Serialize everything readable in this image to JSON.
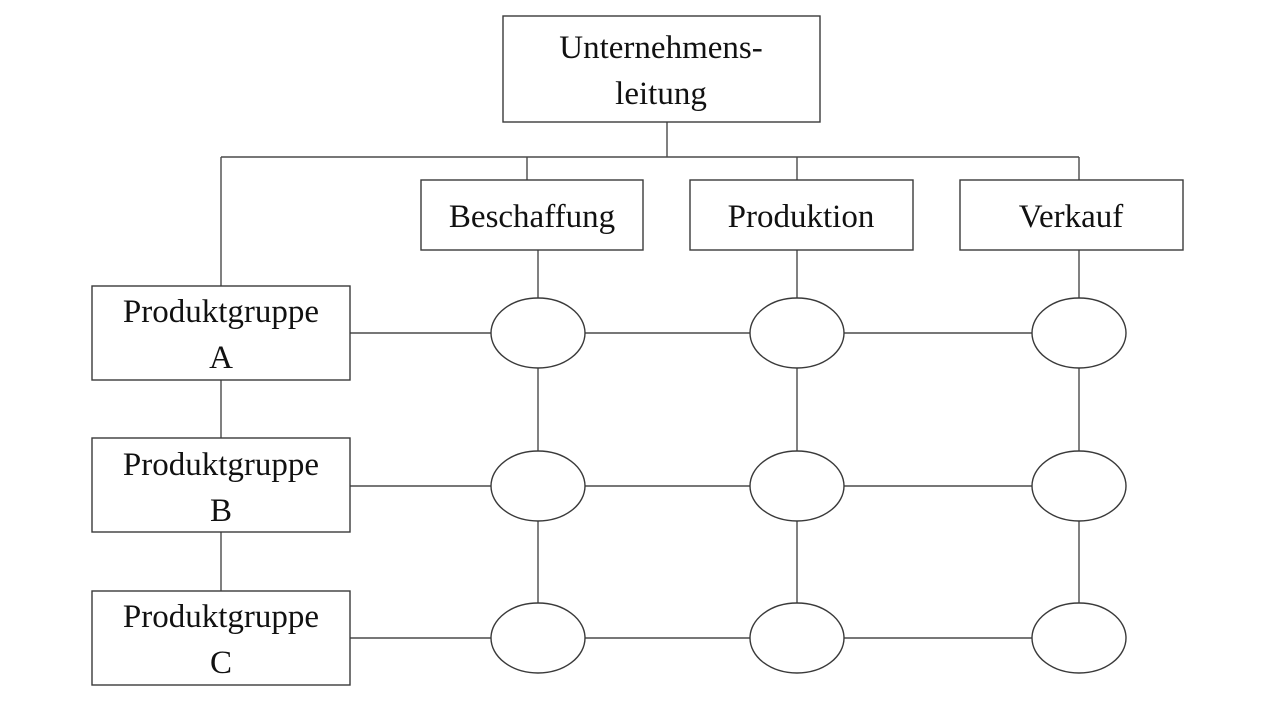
{
  "diagram": {
    "top": {
      "line1": "Unternehmens-",
      "line2": "leitung"
    },
    "functions": [
      {
        "label": "Beschaffung"
      },
      {
        "label": "Produktion"
      },
      {
        "label": "Verkauf"
      }
    ],
    "product_groups": [
      {
        "line1": "Produktgruppe",
        "line2": "A"
      },
      {
        "line1": "Produktgruppe",
        "line2": "B"
      },
      {
        "line1": "Produktgruppe",
        "line2": "C"
      }
    ]
  },
  "colors": {
    "line": "#4a4a4a",
    "border": "#3a3a3a",
    "text": "#111111",
    "background": "#ffffff"
  }
}
